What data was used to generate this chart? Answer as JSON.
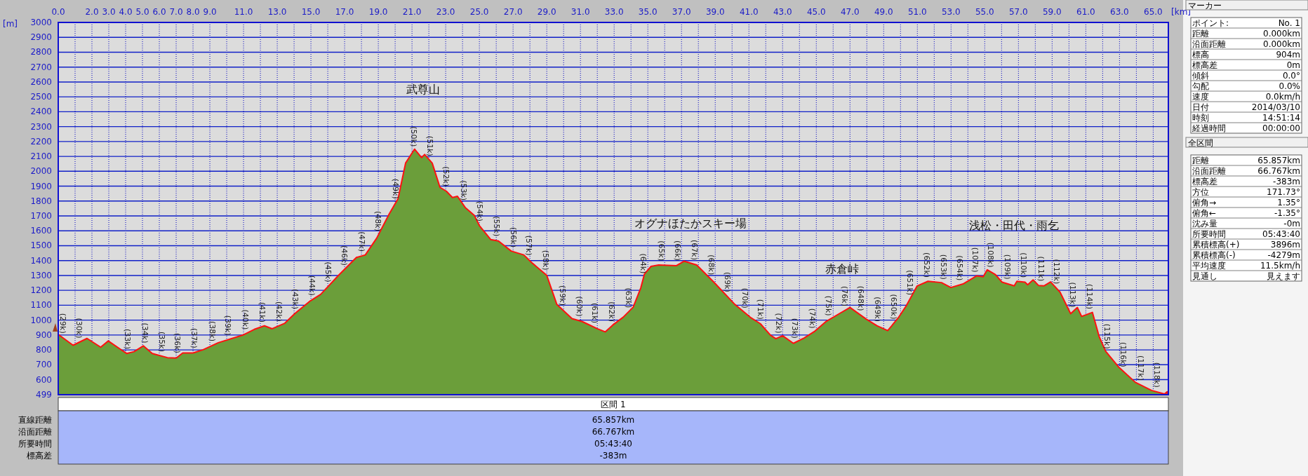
{
  "chart_data": [
    {
      "type": "area",
      "xlabel": "[km]",
      "ylabel": "[m]",
      "xlim": [
        0,
        65.9
      ],
      "ylim": [
        499,
        3000
      ],
      "grid": true,
      "xticks": [
        {
          "value": 0,
          "label": "0.0"
        },
        {
          "value": 1,
          "label": null
        },
        {
          "value": 2,
          "label": "2.0"
        },
        {
          "value": 3,
          "label": "3.0"
        },
        {
          "value": 4,
          "label": "4.0"
        },
        {
          "value": 5,
          "label": "5.0"
        },
        {
          "value": 6,
          "label": "6.0"
        },
        {
          "value": 7,
          "label": "7.0"
        },
        {
          "value": 8,
          "label": "8.0"
        },
        {
          "value": 9,
          "label": "9.0"
        },
        {
          "value": 10,
          "label": null
        },
        {
          "value": 11,
          "label": "11.0"
        },
        {
          "value": 12,
          "label": null
        },
        {
          "value": 13,
          "label": "13.0"
        },
        {
          "value": 14,
          "label": null
        },
        {
          "value": 15,
          "label": "15.0"
        },
        {
          "value": 16,
          "label": null
        },
        {
          "value": 17,
          "label": "17.0"
        },
        {
          "value": 18,
          "label": null
        },
        {
          "value": 19,
          "label": "19.0"
        },
        {
          "value": 20,
          "label": null
        },
        {
          "value": 21,
          "label": "21.0"
        },
        {
          "value": 22,
          "label": null
        },
        {
          "value": 23,
          "label": "23.0"
        },
        {
          "value": 24,
          "label": null
        },
        {
          "value": 25,
          "label": "25.0"
        },
        {
          "value": 26,
          "label": null
        },
        {
          "value": 27,
          "label": "27.0"
        },
        {
          "value": 28,
          "label": null
        },
        {
          "value": 29,
          "label": "29.0"
        },
        {
          "value": 30,
          "label": null
        },
        {
          "value": 31,
          "label": "31.0"
        },
        {
          "value": 32,
          "label": null
        },
        {
          "value": 33,
          "label": "33.0"
        },
        {
          "value": 34,
          "label": null
        },
        {
          "value": 35,
          "label": "35.0"
        },
        {
          "value": 36,
          "label": null
        },
        {
          "value": 37,
          "label": "37.0"
        },
        {
          "value": 38,
          "label": null
        },
        {
          "value": 39,
          "label": "39.0"
        },
        {
          "value": 40,
          "label": null
        },
        {
          "value": 41,
          "label": "41.0"
        },
        {
          "value": 42,
          "label": null
        },
        {
          "value": 43,
          "label": "43.0"
        },
        {
          "value": 44,
          "label": null
        },
        {
          "value": 45,
          "label": "45.0"
        },
        {
          "value": 46,
          "label": null
        },
        {
          "value": 47,
          "label": "47.0"
        },
        {
          "value": 48,
          "label": null
        },
        {
          "value": 49,
          "label": "49.0"
        },
        {
          "value": 50,
          "label": null
        },
        {
          "value": 51,
          "label": "51.0"
        },
        {
          "value": 52,
          "label": null
        },
        {
          "value": 53,
          "label": "53.0"
        },
        {
          "value": 54,
          "label": null
        },
        {
          "value": 55,
          "label": "55.0"
        },
        {
          "value": 56,
          "label": null
        },
        {
          "value": 57,
          "label": "57.0"
        },
        {
          "value": 58,
          "label": null
        },
        {
          "value": 59,
          "label": "59.0"
        },
        {
          "value": 60,
          "label": null
        },
        {
          "value": 61,
          "label": "61.0"
        },
        {
          "value": 62,
          "label": null
        },
        {
          "value": 63,
          "label": "63.0"
        },
        {
          "value": 64,
          "label": null
        },
        {
          "value": 65,
          "label": "65.0"
        }
      ],
      "yticks": [
        499,
        600,
        700,
        800,
        900,
        1000,
        1100,
        1200,
        1300,
        1400,
        1500,
        1600,
        1700,
        1800,
        1900,
        2000,
        2100,
        2200,
        2300,
        2400,
        2500,
        2600,
        2700,
        2800,
        2900,
        3000
      ],
      "x": [
        0,
        0.88,
        1.71,
        2.52,
        2.97,
        3.68,
        4.06,
        4.5,
        5.05,
        5.58,
        6.48,
        7.0,
        7.39,
        8.0,
        8.6,
        9.5,
        10.95,
        11.64,
        12.24,
        12.7,
        13.45,
        14.06,
        14.97,
        15.58,
        16.64,
        17.7,
        18.23,
        18.9,
        19.64,
        20.17,
        20.62,
        21.15,
        21.57,
        21.75,
        22.2,
        22.66,
        23.04,
        23.4,
        23.7,
        24.17,
        24.7,
        25.0,
        25.68,
        26.13,
        26.89,
        27.64,
        28.1,
        29.0,
        29.6,
        30.5,
        31.11,
        32.0,
        32.47,
        32.92,
        33.53,
        34.13,
        34.58,
        34.8,
        35.19,
        35.64,
        36.7,
        37.15,
        37.9,
        38.96,
        40.17,
        41.08,
        41.68,
        42.28,
        42.6,
        43.0,
        43.64,
        44.28,
        44.92,
        45.56,
        46.36,
        47.0,
        47.96,
        48.6,
        49.24,
        49.87,
        50.35,
        50.99,
        51.63,
        52.43,
        52.99,
        53.71,
        54.51,
        54.91,
        55.15,
        55.63,
        56.03,
        56.75,
        56.91,
        57.39,
        57.55,
        57.87,
        58.19,
        58.51,
        58.91,
        59.47,
        60.1,
        60.5,
        60.75,
        61.39,
        61.79,
        62.18,
        62.98,
        63.94,
        64.9,
        65.67,
        65.83
      ],
      "series": [
        {
          "color": "#6b9e3a",
          "values": [
            904,
            831,
            877,
            818,
            860,
            805,
            776,
            788,
            827,
            776,
            748,
            745,
            779,
            779,
            801,
            848,
            899,
            938,
            962,
            942,
            979,
            1045,
            1130,
            1173,
            1301,
            1421,
            1438,
            1550,
            1712,
            1815,
            2055,
            2149,
            2092,
            2113,
            2055,
            1892,
            1866,
            1824,
            1832,
            1755,
            1704,
            1635,
            1541,
            1532,
            1464,
            1438,
            1387,
            1301,
            1105,
            1010,
            990,
            942,
            921,
            967,
            1019,
            1087,
            1216,
            1310,
            1361,
            1370,
            1366,
            1396,
            1370,
            1250,
            1105,
            1019,
            976,
            899,
            875,
            895,
            844,
            880,
            926,
            989,
            1043,
            1085,
            1007,
            962,
            929,
            1016,
            1098,
            1230,
            1261,
            1252,
            1219,
            1243,
            1297,
            1291,
            1338,
            1306,
            1255,
            1230,
            1261,
            1255,
            1237,
            1270,
            1233,
            1230,
            1257,
            1188,
            1043,
            1085,
            1025,
            1052,
            890,
            790,
            681,
            582,
            528,
            504,
            519
          ]
        }
      ],
      "annotations": [
        {
          "text": "(29k)",
          "x": 0.27,
          "y": 882
        },
        {
          "text": "(30k)",
          "x": 1.23,
          "y": 850
        },
        {
          "text": "(33k)",
          "x": 4.09,
          "y": 777
        },
        {
          "text": "(34k)",
          "x": 5.15,
          "y": 817
        },
        {
          "text": "(35k)",
          "x": 6.15,
          "y": 758
        },
        {
          "text": "(36k)",
          "x": 7.05,
          "y": 749
        },
        {
          "text": "(37k)",
          "x": 8.08,
          "y": 782
        },
        {
          "text": "(38k)",
          "x": 9.14,
          "y": 829
        },
        {
          "text": "(39k)",
          "x": 10.06,
          "y": 868
        },
        {
          "text": "(40k)",
          "x": 11.1,
          "y": 907
        },
        {
          "text": "(41k)",
          "x": 12.09,
          "y": 956
        },
        {
          "text": "(42k)",
          "x": 13.08,
          "y": 961
        },
        {
          "text": "(43k)",
          "x": 14.06,
          "y": 1045
        },
        {
          "text": "(44k)",
          "x": 15.05,
          "y": 1136
        },
        {
          "text": "(45k)",
          "x": 16.03,
          "y": 1227
        },
        {
          "text": "(46k)",
          "x": 16.97,
          "y": 1338
        },
        {
          "text": "(47k)",
          "x": 18.0,
          "y": 1431
        },
        {
          "text": "(48k)",
          "x": 18.98,
          "y": 1568
        },
        {
          "text": "(49k)",
          "x": 20.02,
          "y": 1786
        },
        {
          "text": "(50k)",
          "x": 21.08,
          "y": 2137
        },
        {
          "text": "(51k)",
          "x": 22.06,
          "y": 2073
        },
        {
          "text": "(52k)",
          "x": 23.0,
          "y": 1869
        },
        {
          "text": "(53k)",
          "x": 24.05,
          "y": 1775
        },
        {
          "text": "(54k)",
          "x": 25.0,
          "y": 1635
        },
        {
          "text": "(55k)",
          "x": 26.01,
          "y": 1534
        },
        {
          "text": "(56k)",
          "x": 27.0,
          "y": 1460
        },
        {
          "text": "(57k)",
          "x": 27.94,
          "y": 1405
        },
        {
          "text": "(58k)",
          "x": 28.95,
          "y": 1306
        },
        {
          "text": "(59k)",
          "x": 29.94,
          "y": 1069
        },
        {
          "text": "(60k)",
          "x": 30.92,
          "y": 996
        },
        {
          "text": "(61k)",
          "x": 31.84,
          "y": 951
        },
        {
          "text": "(62k)",
          "x": 32.85,
          "y": 960
        },
        {
          "text": "(63k)",
          "x": 33.83,
          "y": 1053
        },
        {
          "text": "(64k)",
          "x": 34.74,
          "y": 1284
        },
        {
          "text": "(65k)",
          "x": 35.82,
          "y": 1369
        },
        {
          "text": "(66k)",
          "x": 36.77,
          "y": 1371
        },
        {
          "text": "(67k)",
          "x": 37.75,
          "y": 1375
        },
        {
          "text": "(68k)",
          "x": 38.74,
          "y": 1275
        },
        {
          "text": "(69k)",
          "x": 39.72,
          "y": 1159
        },
        {
          "text": "(70k)",
          "x": 40.74,
          "y": 1051
        },
        {
          "text": "(71k)",
          "x": 41.68,
          "y": 976
        },
        {
          "text": "(72k)",
          "x": 42.76,
          "y": 883
        },
        {
          "text": "(73k)",
          "x": 43.72,
          "y": 849
        },
        {
          "text": "(74k)",
          "x": 44.76,
          "y": 915
        },
        {
          "text": "(75k)",
          "x": 45.72,
          "y": 1000
        },
        {
          "text": "(76k)",
          "x": 46.68,
          "y": 1064
        },
        {
          "text": "(648k)",
          "x": 47.64,
          "y": 1033
        },
        {
          "text": "(649k)",
          "x": 48.63,
          "y": 960
        },
        {
          "text": "(650k)",
          "x": 49.59,
          "y": 977
        },
        {
          "text": "(651k)",
          "x": 50.55,
          "y": 1139
        },
        {
          "text": "(652k)",
          "x": 51.55,
          "y": 1257
        },
        {
          "text": "(653k)",
          "x": 52.56,
          "y": 1244
        },
        {
          "text": "(654k)",
          "x": 53.52,
          "y": 1237
        },
        {
          "text": "(107k)",
          "x": 54.43,
          "y": 1292
        },
        {
          "text": "(108k)",
          "x": 55.34,
          "y": 1325
        },
        {
          "text": "(109k)",
          "x": 56.32,
          "y": 1245
        },
        {
          "text": "(110k)",
          "x": 57.31,
          "y": 1256
        },
        {
          "text": "(111k)",
          "x": 58.32,
          "y": 1232
        },
        {
          "text": "(112k)",
          "x": 59.27,
          "y": 1213
        },
        {
          "text": "(113k)",
          "x": 60.23,
          "y": 1057
        },
        {
          "text": "(114k)",
          "x": 61.23,
          "y": 1045
        },
        {
          "text": "(115k)",
          "x": 62.27,
          "y": 778
        },
        {
          "text": "(116k)",
          "x": 63.23,
          "y": 655
        },
        {
          "text": "(117k)",
          "x": 64.24,
          "y": 565
        },
        {
          "text": "(118k)",
          "x": 65.2,
          "y": 519
        },
        "武尊山",
        "オグナほたかスキー場",
        "赤倉峠",
        "浅松・田代・雨乞"
      ]
    },
    {
      "type": "other",
      "title": "区間 1",
      "annotations": [
        "直線距離",
        "65.857km",
        "沿面距離",
        "66.767km",
        "所要時間",
        "05:43:40",
        "標高差",
        "-383m"
      ]
    },
    {
      "type": "other",
      "title": "マーカー",
      "annotations": [
        "ポイント:",
        "No. 1",
        "距離",
        "0.000km",
        "沿面距離",
        "0.000km",
        "標高",
        "904m",
        "標高差",
        "0m",
        "傾斜",
        "0.0°",
        "勾配",
        "0.0%",
        "速度",
        "0.0km/h",
        "日付",
        "2014/03/10",
        "時刻",
        "14:51:14",
        "経過時間",
        "00:00:00"
      ]
    },
    {
      "type": "other",
      "title": "全区間",
      "annotations": [
        "距離",
        "65.857km",
        "沿面距離",
        "66.767km",
        "標高差",
        "-383m",
        "方位",
        "171.73°",
        "俯角→",
        "1.35°",
        "俯角←",
        "-1.35°",
        "沈み量",
        "-0m",
        "所要時間",
        "05:43:40",
        "累積標高(+)",
        "3896m",
        "累積標高(-)",
        "-4279m",
        "平均速度",
        "11.5km/h",
        "見通し",
        "見えます"
      ]
    }
  ]
}
